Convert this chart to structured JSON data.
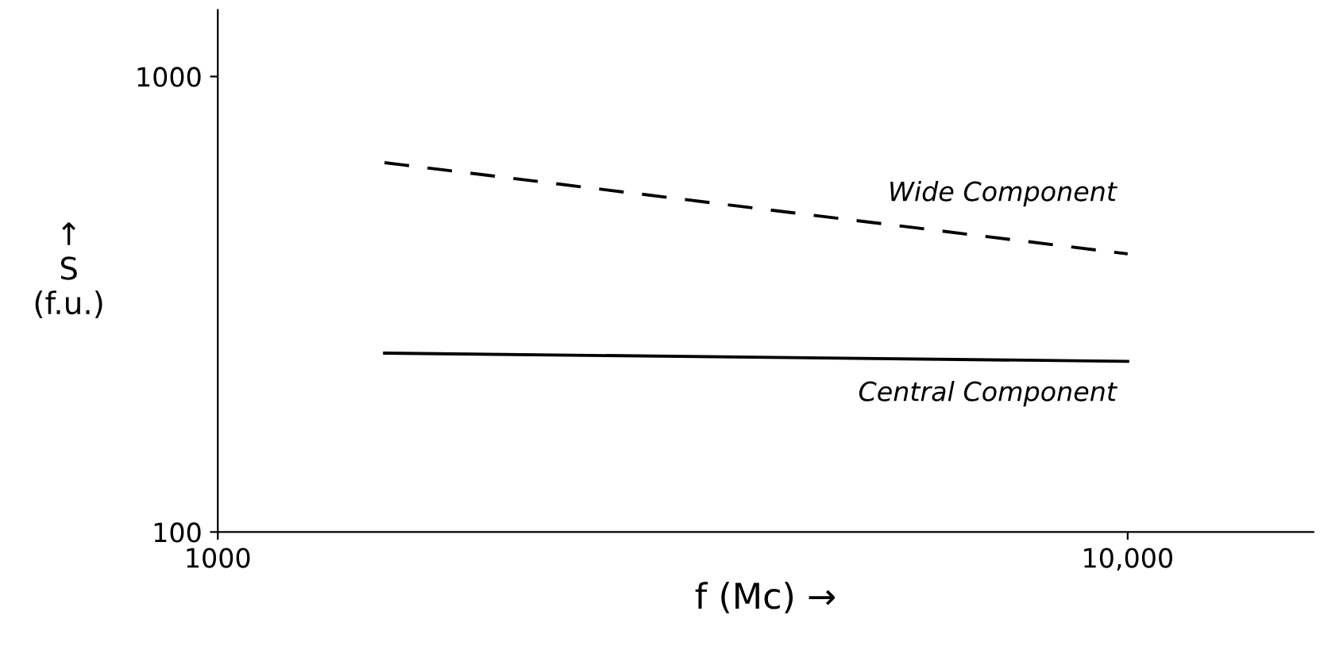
{
  "chart_data": {
    "type": "line",
    "log": "xy",
    "xlabel": "f (Mc) →",
    "ylabel": "↑\nS\n(f.u.)",
    "xlim": [
      1000,
      16000
    ],
    "ylim": [
      100,
      1400
    ],
    "xticks": [
      1000,
      {
        "value": 10000,
        "label": "10,000"
      }
    ],
    "yticks": [
      100,
      1000
    ],
    "grid": false,
    "legend": false,
    "marker": "none",
    "x": [
      1525,
      10000
    ],
    "series": [
      {
        "name": "Wide Component",
        "color": "#000000",
        "values": [
          647,
          408
        ],
        "line_style": "dashed"
      },
      {
        "name": "Central Component",
        "color": "#000000",
        "values": [
          247,
          237
        ],
        "line_style": "solid"
      }
    ]
  }
}
